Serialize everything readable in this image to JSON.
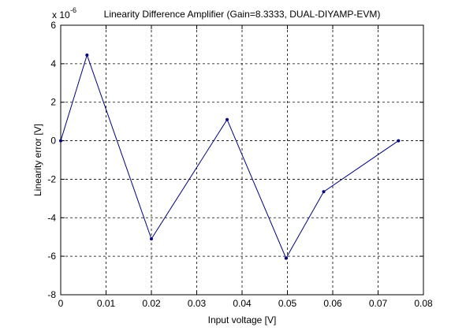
{
  "chart_data": {
    "type": "line",
    "title": "Linearity Difference Amplifier (Gain=8.3333, DUAL-DIYAMP-EVM)",
    "xlabel": "Input voltage [V]",
    "ylabel": "Linearity error [V]",
    "y_multiplier_base": "x 10",
    "y_multiplier_exponent": "-6",
    "xlim": [
      0,
      0.08
    ],
    "ylim": [
      -8,
      6
    ],
    "x_ticks": [
      0,
      0.01,
      0.02,
      0.03,
      0.04,
      0.05,
      0.06,
      0.07,
      0.08
    ],
    "x_tick_labels": [
      "0",
      "0.01",
      "0.02",
      "0.03",
      "0.04",
      "0.05",
      "0.06",
      "0.07",
      "0.08"
    ],
    "y_ticks": [
      -8,
      -6,
      -4,
      -2,
      0,
      2,
      4,
      6
    ],
    "y_tick_labels": [
      "-8",
      "-6",
      "-4",
      "-2",
      "0",
      "2",
      "4",
      "6"
    ],
    "grid": true,
    "grid_style": "dashed",
    "series": [
      {
        "color": "#00007f",
        "marker": "point",
        "x": [
          0,
          0.0058,
          0.02,
          0.0367,
          0.0497,
          0.058,
          0.0745
        ],
        "y": [
          0,
          4.45,
          -5.1,
          1.1,
          -6.1,
          -2.65,
          0
        ]
      }
    ]
  }
}
